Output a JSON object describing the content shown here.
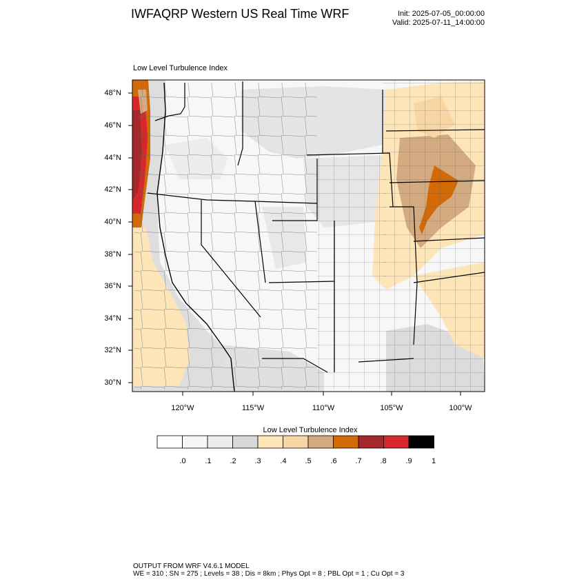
{
  "header": {
    "title": "IWFAQRP Western US Real Time WRF",
    "init": "Init: 2025-07-05_00:00:00",
    "valid": "Valid: 2025-07-11_14:00:00"
  },
  "map": {
    "subtitle": "Low Level Turbulence Index",
    "lat_labels": [
      "48°N",
      "46°N",
      "44°N",
      "42°N",
      "40°N",
      "38°N",
      "36°N",
      "34°N",
      "32°N",
      "30°N"
    ],
    "lon_labels": [
      "120°W",
      "115°W",
      "110°W",
      "105°W",
      "100°W"
    ]
  },
  "colorbar": {
    "title": "Low Level Turbulence Index",
    "labels": [
      ".0",
      ".1",
      ".2",
      ".3",
      ".4",
      ".5",
      ".6",
      ".7",
      ".8",
      ".9",
      "1"
    ],
    "colors": [
      "#ffffff",
      "#f6f6f6",
      "#ececec",
      "#d8d8d8",
      "#fde5b8",
      "#f8d6a4",
      "#d4ab80",
      "#d36a08",
      "#a5282a",
      "#d7272c",
      "#000000"
    ]
  },
  "footer": {
    "line1": "OUTPUT FROM WRF V4.6.1 MODEL",
    "line2": "WE = 310 ; SN = 275 ; Levels = 38 ; Dis = 8km ; Phys Opt = 8 ; PBL Opt = 1 ; Cu Opt = 3"
  }
}
